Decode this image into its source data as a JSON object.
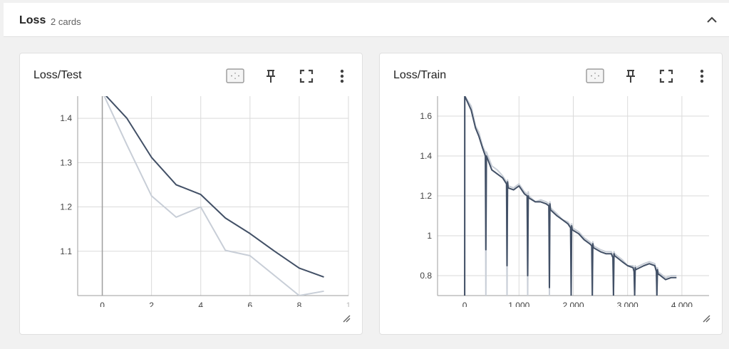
{
  "group": {
    "title": "Loss",
    "count_label": "2 cards",
    "collapse_icon": "chevron-up-icon"
  },
  "icons": {
    "fit": "fit-to-data-icon",
    "pin": "pin-icon",
    "fullscreen": "fullscreen-icon",
    "menu": "more-vert-icon",
    "resize": "resize-handle-icon"
  },
  "colors": {
    "smoothed": "#425066",
    "raw": "#c8ced7",
    "grid": "#dadada",
    "axis": "#9e9e9e"
  },
  "cards": [
    {
      "title": "Loss/Test",
      "chart_data": {
        "type": "line",
        "x_ticks": [
          "0",
          "2",
          "4",
          "6",
          "8",
          "1"
        ],
        "y_ticks": [
          "1.1",
          "1.2",
          "1.3",
          "1.4"
        ],
        "xlim": [
          -1,
          10
        ],
        "ylim": [
          1.0,
          1.45
        ],
        "series": [
          {
            "role": "raw",
            "x": [
              0,
              1,
              2,
              3,
              4,
              5,
              6,
              7,
              8,
              9
            ],
            "y": [
              1.46,
              1.34,
              1.225,
              1.177,
              1.2,
              1.102,
              1.09,
              1.045,
              1.0,
              1.01
            ]
          },
          {
            "role": "smoothed",
            "x": [
              0,
              1,
              2,
              3,
              4,
              5,
              6,
              7,
              8,
              9
            ],
            "y": [
              1.46,
              1.4,
              1.312,
              1.25,
              1.228,
              1.175,
              1.14,
              1.1,
              1.062,
              1.042
            ]
          }
        ]
      }
    },
    {
      "title": "Loss/Train",
      "chart_data": {
        "type": "line",
        "x_ticks": [
          "0",
          "1,000",
          "2,000",
          "3,000",
          "4,000"
        ],
        "y_ticks": [
          "0.8",
          "1",
          "1.2",
          "1.4",
          "1.6"
        ],
        "xlim": [
          -500,
          4500
        ],
        "ylim": [
          0.7,
          1.7
        ],
        "series": [
          {
            "role": "raw",
            "x": [
              0,
              1,
              2,
              120,
              200,
              260,
              330,
              380,
              390,
              400,
              500,
              600,
              700,
              770,
              780,
              790,
              800,
              900,
              1000,
              1100,
              1150,
              1160,
              1170,
              1180,
              1300,
              1400,
              1500,
              1550,
              1560,
              1570,
              1580,
              1700,
              1800,
              1900,
              1950,
              1960,
              1970,
              1980,
              2100,
              2200,
              2300,
              2340,
              2350,
              2360,
              2370,
              2500,
              2600,
              2700,
              2730,
              2740,
              2750,
              2760,
              2900,
              3000,
              3100,
              3120,
              3130,
              3140,
              3150,
              3300,
              3400,
              3500,
              3530,
              3540,
              3550,
              3560,
              3700,
              3800,
              3900
            ],
            "y": [
              0.7,
              1.7,
              1.7,
              1.65,
              1.55,
              1.52,
              1.45,
              1.42,
              0.7,
              1.42,
              1.35,
              1.33,
              1.3,
              1.27,
              0.7,
              1.28,
              1.25,
              1.24,
              1.26,
              1.22,
              1.21,
              0.7,
              1.22,
              1.2,
              1.17,
              1.18,
              1.17,
              1.16,
              0.7,
              1.17,
              1.14,
              1.11,
              1.08,
              1.07,
              1.05,
              0.7,
              1.06,
              1.04,
              1.02,
              0.99,
              0.97,
              0.96,
              0.7,
              0.97,
              0.95,
              0.93,
              0.92,
              0.92,
              0.9,
              0.7,
              0.92,
              0.91,
              0.88,
              0.85,
              0.85,
              0.83,
              0.7,
              0.85,
              0.84,
              0.86,
              0.87,
              0.86,
              0.83,
              0.7,
              0.84,
              0.82,
              0.79,
              0.8,
              0.8
            ]
          },
          {
            "role": "smoothed",
            "x": [
              0,
              1,
              2,
              120,
              200,
              260,
              330,
              380,
              390,
              400,
              500,
              600,
              700,
              770,
              780,
              790,
              800,
              900,
              1000,
              1100,
              1150,
              1160,
              1170,
              1180,
              1300,
              1400,
              1500,
              1550,
              1560,
              1570,
              1580,
              1700,
              1800,
              1900,
              1950,
              1960,
              1970,
              1980,
              2100,
              2200,
              2300,
              2340,
              2350,
              2360,
              2370,
              2500,
              2600,
              2700,
              2730,
              2740,
              2750,
              2760,
              2900,
              3000,
              3100,
              3120,
              3130,
              3140,
              3150,
              3300,
              3400,
              3500,
              3530,
              3540,
              3550,
              3560,
              3700,
              3800,
              3900
            ],
            "y": [
              0.7,
              1.7,
              1.7,
              1.63,
              1.54,
              1.5,
              1.44,
              1.4,
              0.93,
              1.4,
              1.33,
              1.31,
              1.29,
              1.26,
              0.85,
              1.27,
              1.24,
              1.23,
              1.25,
              1.21,
              1.2,
              0.8,
              1.2,
              1.19,
              1.17,
              1.17,
              1.16,
              1.15,
              0.74,
              1.16,
              1.13,
              1.1,
              1.08,
              1.06,
              1.04,
              0.7,
              1.05,
              1.03,
              1.01,
              0.98,
              0.96,
              0.95,
              0.7,
              0.96,
              0.94,
              0.92,
              0.91,
              0.91,
              0.89,
              0.7,
              0.91,
              0.9,
              0.87,
              0.85,
              0.84,
              0.82,
              0.7,
              0.84,
              0.83,
              0.85,
              0.86,
              0.85,
              0.82,
              0.7,
              0.83,
              0.81,
              0.78,
              0.79,
              0.79
            ]
          }
        ]
      }
    }
  ]
}
